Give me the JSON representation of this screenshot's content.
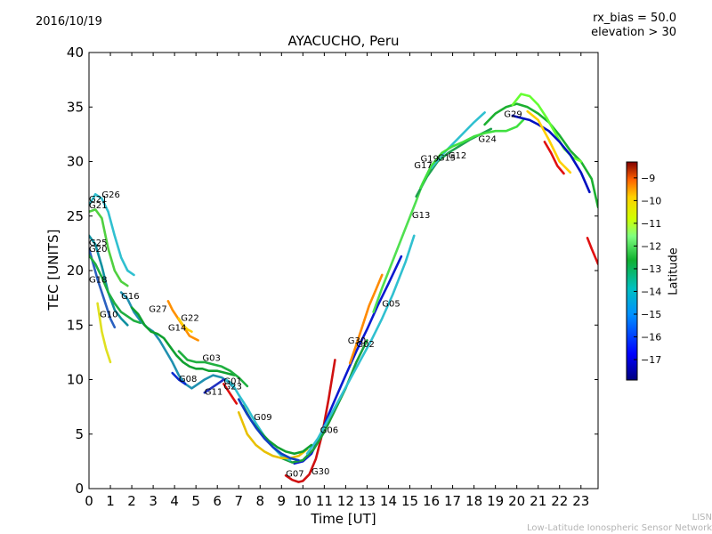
{
  "header": {
    "date": "2016/10/19",
    "title": "AYACUCHO, Peru",
    "rx_bias": "rx_bias = 50.0",
    "elevation": "elevation > 30"
  },
  "footer": {
    "credit_line1": "LISN",
    "credit_line2": "Low-Latitude Ionospheric Sensor Network"
  },
  "chart_data": {
    "type": "scatter",
    "title": "AYACUCHO, Peru",
    "xlabel": "Time [UT]",
    "ylabel": "TEC [UNITS]",
    "xlim": [
      0,
      23.8
    ],
    "ylim": [
      0,
      40
    ],
    "x_ticks": [
      0,
      1,
      2,
      3,
      4,
      5,
      6,
      7,
      8,
      9,
      10,
      11,
      12,
      13,
      14,
      15,
      16,
      17,
      18,
      19,
      20,
      21,
      22,
      23
    ],
    "y_ticks": [
      0,
      5,
      10,
      15,
      20,
      25,
      30,
      35,
      40
    ],
    "grid": false,
    "colorbar": {
      "label": "Latitude",
      "range": [
        -17.9,
        -8.3
      ],
      "ticks": [
        -9,
        -10,
        -11,
        -12,
        -13,
        -14,
        -15,
        -16,
        -17
      ],
      "tick_labels": [
        "−9",
        "−10",
        "−11",
        "−12",
        "−13",
        "−14",
        "−15",
        "−16",
        "−17"
      ],
      "colors": [
        "#00007f",
        "#0000ff",
        "#0080ff",
        "#00d0e0",
        "#10c040",
        "#7fff7f",
        "#d0ff00",
        "#ffd000",
        "#ff8000",
        "#ff2000",
        "#800000"
      ]
    },
    "series": [
      {
        "name": "G07",
        "color": "#d01010",
        "x": [
          9.2,
          9.5,
          9.8,
          10.0,
          10.3,
          10.6,
          10.9,
          11.2,
          11.5
        ],
        "y": [
          1.2,
          0.8,
          0.6,
          0.7,
          1.3,
          2.7,
          5.0,
          8.2,
          11.8
        ]
      },
      {
        "name": "G30",
        "color": "#0a1ad0",
        "x": [
          9.6,
          10.0,
          10.4,
          10.8,
          11.2,
          11.6,
          12.0,
          12.5,
          13.0,
          13.5,
          14.0,
          14.6
        ],
        "y": [
          2.3,
          2.5,
          3.2,
          4.8,
          6.8,
          8.6,
          10.4,
          12.6,
          14.6,
          16.8,
          18.8,
          21.3
        ]
      },
      {
        "name": "G06",
        "color": "#1aa03a",
        "x": [
          9.0,
          9.5,
          10.0,
          10.5,
          11.0,
          11.5,
          12.0,
          12.5,
          13.0
        ],
        "y": [
          2.8,
          2.4,
          2.6,
          3.6,
          5.2,
          7.2,
          9.2,
          11.6,
          13.6
        ]
      },
      {
        "name": "G02",
        "color": "#30c0d0",
        "x": [
          10.2,
          10.7,
          11.2,
          11.7,
          12.2,
          12.7,
          13.2,
          13.7,
          14.2,
          14.8,
          15.2
        ],
        "y": [
          3.2,
          4.6,
          6.4,
          8.2,
          10.0,
          11.8,
          13.6,
          15.6,
          17.8,
          20.8,
          23.2
        ]
      },
      {
        "name": "G05",
        "color": "#ff8a00",
        "x": [
          12.2,
          12.5,
          12.8,
          13.1,
          13.4,
          13.7
        ],
        "y": [
          11.5,
          13.2,
          15.0,
          16.8,
          18.2,
          19.6
        ]
      },
      {
        "name": "G13",
        "color": "#50e050",
        "x": [
          13.3,
          13.7,
          14.1,
          14.5,
          14.9,
          15.3,
          15.6,
          15.9
        ],
        "y": [
          16.2,
          18.4,
          20.4,
          22.4,
          24.4,
          26.4,
          28.0,
          29.2
        ]
      },
      {
        "name": "G12",
        "color": "#1fa050",
        "x": [
          15.3,
          15.8,
          16.3,
          16.8,
          17.3,
          17.8,
          18.3,
          18.8
        ],
        "y": [
          26.8,
          28.6,
          30.0,
          30.8,
          31.4,
          32.0,
          32.5,
          33.0
        ]
      },
      {
        "name": "G17",
        "color": "#30c0d0",
        "x": [
          16.0,
          16.5,
          17.0,
          17.5,
          18.0,
          18.5
        ],
        "y": [
          29.4,
          30.6,
          31.6,
          32.6,
          33.6,
          34.5
        ]
      },
      {
        "name": "G24",
        "color": "#40e040",
        "x": [
          15.5,
          16.0,
          16.5,
          17.0,
          17.5,
          18.0,
          18.5,
          19.0,
          19.5,
          20.0,
          20.3
        ],
        "y": [
          27.6,
          29.6,
          30.8,
          31.4,
          31.8,
          32.3,
          32.6,
          32.8,
          32.8,
          33.2,
          33.8
        ]
      },
      {
        "name": "G29",
        "color": "#1cb030",
        "x": [
          18.5,
          19.0,
          19.5,
          20.0,
          20.5,
          21.0,
          21.5,
          22.0,
          22.5,
          23.0,
          23.5,
          23.8
        ],
        "y": [
          33.4,
          34.4,
          35.0,
          35.3,
          35.0,
          34.4,
          33.6,
          32.4,
          31.0,
          30.0,
          28.4,
          25.8
        ]
      },
      {
        "name": "",
        "color": "#66ff33",
        "x": [
          19.8,
          20.2,
          20.6,
          21.0,
          21.4,
          21.8,
          22.2,
          22.6,
          23.0
        ],
        "y": [
          35.2,
          36.2,
          36.0,
          35.2,
          34.0,
          32.6,
          31.2,
          30.4,
          30.0
        ]
      },
      {
        "name": "",
        "color": "#0010c0",
        "x": [
          19.8,
          20.2,
          20.6,
          21.0,
          21.5,
          22.0,
          22.5,
          23.0,
          23.4
        ],
        "y": [
          34.2,
          34.0,
          33.8,
          33.4,
          32.8,
          31.8,
          30.6,
          29.0,
          27.2
        ]
      },
      {
        "name": "",
        "color": "#ffd000",
        "x": [
          20.5,
          21.0,
          21.5,
          22.0,
          22.5
        ],
        "y": [
          34.6,
          33.8,
          32.0,
          30.0,
          29.0
        ]
      },
      {
        "name": "",
        "color": "#e01010",
        "x": [
          21.3,
          21.6,
          21.9,
          22.2
        ],
        "y": [
          31.8,
          30.8,
          29.6,
          28.9
        ]
      },
      {
        "name": "",
        "color": "#e01010",
        "x": [
          23.3,
          23.5,
          23.8
        ],
        "y": [
          23.0,
          22.0,
          20.6
        ]
      },
      {
        "name": "G26",
        "color": "#30c0d0",
        "x": [
          0.0,
          0.3,
          0.6,
          0.9,
          1.2,
          1.5,
          1.8,
          2.1
        ],
        "y": [
          26.0,
          27.0,
          26.6,
          25.4,
          23.2,
          21.2,
          20.0,
          19.6
        ]
      },
      {
        "name": "G21",
        "color": "#50d040",
        "x": [
          0.0,
          0.3,
          0.6,
          0.9,
          1.2,
          1.5,
          1.8
        ],
        "y": [
          25.4,
          25.6,
          24.8,
          22.0,
          20.0,
          19.0,
          18.6
        ]
      },
      {
        "name": "G20",
        "color": "#1090a0",
        "x": [
          0.0,
          0.3,
          0.6,
          0.9,
          1.2,
          1.5,
          1.8
        ],
        "y": [
          23.2,
          22.4,
          20.4,
          18.0,
          16.4,
          15.6,
          15.0
        ]
      },
      {
        "name": "G25",
        "color": "#2a60c0",
        "x": [
          0.0,
          0.2,
          0.4,
          0.6,
          0.8,
          1.0,
          1.2
        ],
        "y": [
          22.0,
          20.6,
          19.2,
          18.0,
          16.8,
          15.6,
          14.8
        ]
      },
      {
        "name": "G18",
        "color": "#20b040",
        "x": [
          0.0,
          0.3,
          0.6,
          0.9,
          1.2,
          1.5,
          1.8,
          2.1,
          2.4
        ],
        "y": [
          21.4,
          20.6,
          19.4,
          18.0,
          17.0,
          16.2,
          15.8,
          15.4,
          15.2
        ]
      },
      {
        "name": "G10",
        "color": "#e0e020",
        "x": [
          0.4,
          0.6,
          0.8,
          1.0
        ],
        "y": [
          17.0,
          14.4,
          12.8,
          11.6
        ]
      },
      {
        "name": "G16",
        "color": "#2090b0",
        "x": [
          1.5,
          1.8,
          2.1,
          2.4,
          2.7,
          3.0,
          3.3,
          3.6,
          3.9,
          4.2,
          4.5,
          4.8,
          5.1,
          5.4,
          5.8,
          6.2,
          6.5,
          6.8
        ],
        "y": [
          18.0,
          17.4,
          16.2,
          15.4,
          14.8,
          14.4,
          13.6,
          12.6,
          11.6,
          10.4,
          9.6,
          9.2,
          9.6,
          10.0,
          10.4,
          10.2,
          9.8,
          9.2
        ]
      },
      {
        "name": "G27",
        "color": "#10a030",
        "x": [
          2.0,
          2.3,
          2.6,
          2.9,
          3.2,
          3.5,
          3.8,
          4.1,
          4.4,
          4.7,
          5.0,
          5.3,
          5.6,
          6.0,
          6.4,
          6.8
        ],
        "y": [
          16.6,
          16.0,
          15.0,
          14.4,
          14.2,
          13.8,
          13.0,
          12.2,
          11.6,
          11.2,
          11.0,
          11.0,
          10.8,
          10.8,
          10.6,
          10.4
        ]
      },
      {
        "name": "G14",
        "color": "#ff9000",
        "x": [
          3.7,
          3.9,
          4.1,
          4.3,
          4.5,
          4.7,
          4.9,
          5.1
        ],
        "y": [
          17.2,
          16.4,
          15.8,
          15.2,
          14.6,
          14.0,
          13.8,
          13.6
        ]
      },
      {
        "name": "G22",
        "color": "#ffd000",
        "x": [
          4.2,
          4.4,
          4.6,
          4.8
        ],
        "y": [
          15.6,
          15.0,
          14.6,
          14.4
        ]
      },
      {
        "name": "G03",
        "color": "#20b040",
        "x": [
          4.2,
          4.6,
          5.0,
          5.4,
          5.8,
          6.2,
          6.6,
          7.0,
          7.4
        ],
        "y": [
          12.6,
          11.8,
          11.6,
          11.6,
          11.4,
          11.2,
          10.8,
          10.2,
          9.4
        ]
      },
      {
        "name": "G08",
        "color": "#0a2ad0",
        "x": [
          3.9,
          4.2,
          4.5
        ],
        "y": [
          10.6,
          10.0,
          9.6
        ]
      },
      {
        "name": "G11",
        "color": "#2030c0",
        "x": [
          5.4,
          5.7,
          6.0,
          6.3
        ],
        "y": [
          8.8,
          9.2,
          9.6,
          10.0
        ]
      },
      {
        "name": "G01",
        "color": "#30c0d0",
        "x": [
          6.4,
          6.7,
          7.0,
          7.4,
          7.8,
          8.2,
          8.6,
          9.0,
          9.4
        ],
        "y": [
          10.0,
          9.6,
          8.6,
          7.4,
          6.0,
          4.8,
          3.8,
          3.0,
          2.6
        ]
      },
      {
        "name": "G23",
        "color": "#e01010",
        "x": [
          6.3,
          6.5,
          6.7,
          6.9
        ],
        "y": [
          9.6,
          9.0,
          8.4,
          7.8
        ]
      },
      {
        "name": "G09",
        "color": "#e8c000",
        "x": [
          7.0,
          7.4,
          7.8,
          8.2,
          8.6,
          9.0,
          9.4,
          9.8,
          10.2
        ],
        "y": [
          7.0,
          5.0,
          4.0,
          3.4,
          3.0,
          2.8,
          2.8,
          3.0,
          3.6
        ]
      },
      {
        "name": "",
        "color": "#10a030",
        "x": [
          7.2,
          7.6,
          8.0,
          8.4,
          8.8,
          9.2,
          9.6,
          10.0,
          10.4
        ],
        "y": [
          7.6,
          6.2,
          5.2,
          4.4,
          3.8,
          3.4,
          3.2,
          3.4,
          4.0
        ]
      },
      {
        "name": "",
        "color": "#1040c0",
        "x": [
          7.0,
          7.4,
          7.8,
          8.2,
          8.6,
          9.0,
          9.4,
          9.8
        ],
        "y": [
          8.2,
          6.8,
          5.6,
          4.6,
          3.8,
          3.2,
          2.8,
          2.6
        ]
      }
    ],
    "labels": [
      {
        "text": "G26",
        "x": 0.6,
        "y": 26.7
      },
      {
        "text": "G21",
        "x": 0.0,
        "y": 26.3
      },
      {
        "text": "G21",
        "x": 0.0,
        "y": 25.7
      },
      {
        "text": "G25",
        "x": 0.0,
        "y": 22.3
      },
      {
        "text": "G20",
        "x": 0.0,
        "y": 21.7
      },
      {
        "text": "G18",
        "x": 0.0,
        "y": 18.9
      },
      {
        "text": "G10",
        "x": 0.5,
        "y": 15.7
      },
      {
        "text": "G16",
        "x": 1.5,
        "y": 17.4
      },
      {
        "text": "G27",
        "x": 2.8,
        "y": 16.2
      },
      {
        "text": "G22",
        "x": 4.3,
        "y": 15.4
      },
      {
        "text": "G14",
        "x": 3.7,
        "y": 14.5
      },
      {
        "text": "G03",
        "x": 5.3,
        "y": 11.7
      },
      {
        "text": "G08",
        "x": 4.2,
        "y": 9.8
      },
      {
        "text": "G01",
        "x": 6.3,
        "y": 9.6
      },
      {
        "text": "G23",
        "x": 6.3,
        "y": 9.1
      },
      {
        "text": "G11",
        "x": 5.4,
        "y": 8.6
      },
      {
        "text": "G09",
        "x": 7.7,
        "y": 6.3
      },
      {
        "text": "G06",
        "x": 10.8,
        "y": 5.1
      },
      {
        "text": "G07",
        "x": 9.2,
        "y": 1.1
      },
      {
        "text": "G30",
        "x": 10.4,
        "y": 1.3
      },
      {
        "text": "G05",
        "x": 13.7,
        "y": 16.7
      },
      {
        "text": "G02",
        "x": 12.5,
        "y": 13.0
      },
      {
        "text": "G30",
        "x": 12.1,
        "y": 13.3
      },
      {
        "text": "G13",
        "x": 15.1,
        "y": 24.8
      },
      {
        "text": "G17",
        "x": 15.2,
        "y": 29.4
      },
      {
        "text": "G19",
        "x": 15.5,
        "y": 30.0
      },
      {
        "text": "G15",
        "x": 16.3,
        "y": 30.1
      },
      {
        "text": "G12",
        "x": 16.8,
        "y": 30.3
      },
      {
        "text": "G24",
        "x": 18.2,
        "y": 31.8
      },
      {
        "text": "G29",
        "x": 19.4,
        "y": 34.1
      }
    ]
  }
}
